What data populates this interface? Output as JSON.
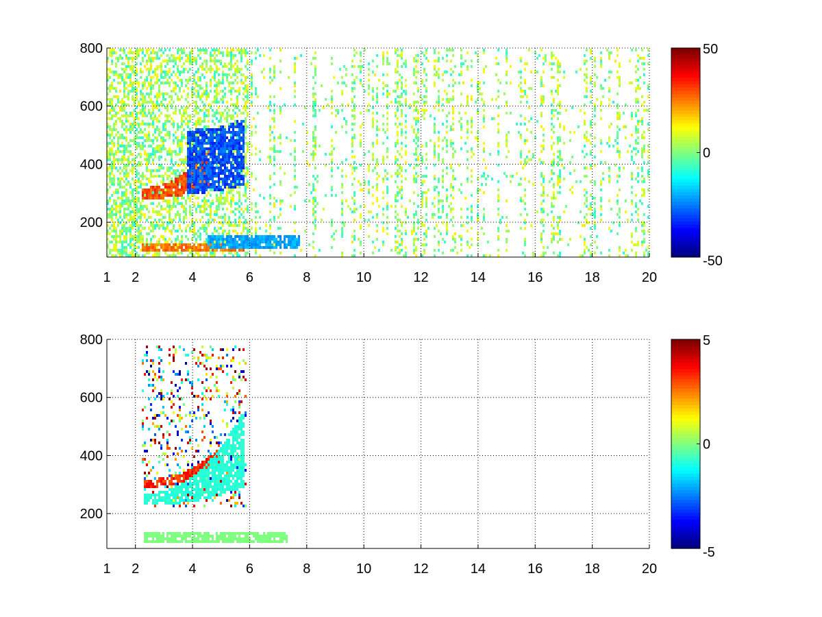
{
  "chart_data": [
    {
      "type": "heatmap",
      "title": "",
      "xlabel": "",
      "ylabel": "",
      "xlim": [
        1,
        20
      ],
      "ylim": [
        80,
        800
      ],
      "x_ticks": [
        "1",
        "2",
        "4",
        "6",
        "8",
        "10",
        "12",
        "14",
        "16",
        "18",
        "20"
      ],
      "x_tick_values": [
        1,
        2,
        4,
        6,
        8,
        10,
        12,
        14,
        16,
        18,
        20
      ],
      "y_ticks": [
        "200",
        "400",
        "600",
        "800"
      ],
      "y_tick_values": [
        200,
        400,
        600,
        800
      ],
      "grid": "dotted",
      "colormap": "jet",
      "colorbar": {
        "min": -50,
        "max": 50,
        "ticks": [
          "50",
          "0",
          "-50"
        ],
        "tick_values": [
          50,
          0,
          -50
        ]
      },
      "features": [
        {
          "kind": "band",
          "x": [
            2.2,
            4.6
          ],
          "y_start": [
            280,
            320
          ],
          "y_end": [
            320,
            460
          ],
          "value": 35
        },
        {
          "kind": "band",
          "x": [
            3.8,
            5.8
          ],
          "y_start": [
            300,
            520
          ],
          "y_end": [
            330,
            560
          ],
          "value": -35
        },
        {
          "kind": "band",
          "x": [
            2.2,
            5.8
          ],
          "y": [
            100,
            130
          ],
          "value": 30
        },
        {
          "kind": "band",
          "x": [
            4.5,
            7.8
          ],
          "y": [
            110,
            160
          ],
          "value": -25
        }
      ]
    },
    {
      "type": "heatmap",
      "title": "",
      "xlabel": "",
      "ylabel": "",
      "xlim": [
        1,
        20
      ],
      "ylim": [
        80,
        800
      ],
      "x_ticks": [
        "1",
        "2",
        "4",
        "6",
        "8",
        "10",
        "12",
        "14",
        "16",
        "18",
        "20"
      ],
      "x_tick_values": [
        1,
        2,
        4,
        6,
        8,
        10,
        12,
        14,
        16,
        18,
        20
      ],
      "y_ticks": [
        "200",
        "400",
        "600",
        "800"
      ],
      "y_tick_values": [
        200,
        400,
        600,
        800
      ],
      "grid": "dotted",
      "colormap": "jet",
      "colorbar": {
        "min": -5,
        "max": 5,
        "ticks": [
          "5",
          "0",
          "-5"
        ],
        "tick_values": [
          5,
          0,
          -5
        ]
      },
      "features": [
        {
          "kind": "band",
          "x": [
            2.3,
            5.0
          ],
          "y_start": [
            290,
            320
          ],
          "y_end": [
            380,
            430
          ],
          "value": 4
        },
        {
          "kind": "band",
          "x": [
            2.3,
            5.8
          ],
          "y_start": [
            230,
            270
          ],
          "y_end": [
            290,
            560
          ],
          "value": -1
        },
        {
          "kind": "band",
          "x": [
            2.3,
            7.3
          ],
          "y": [
            100,
            140
          ],
          "value": 0
        }
      ]
    }
  ]
}
